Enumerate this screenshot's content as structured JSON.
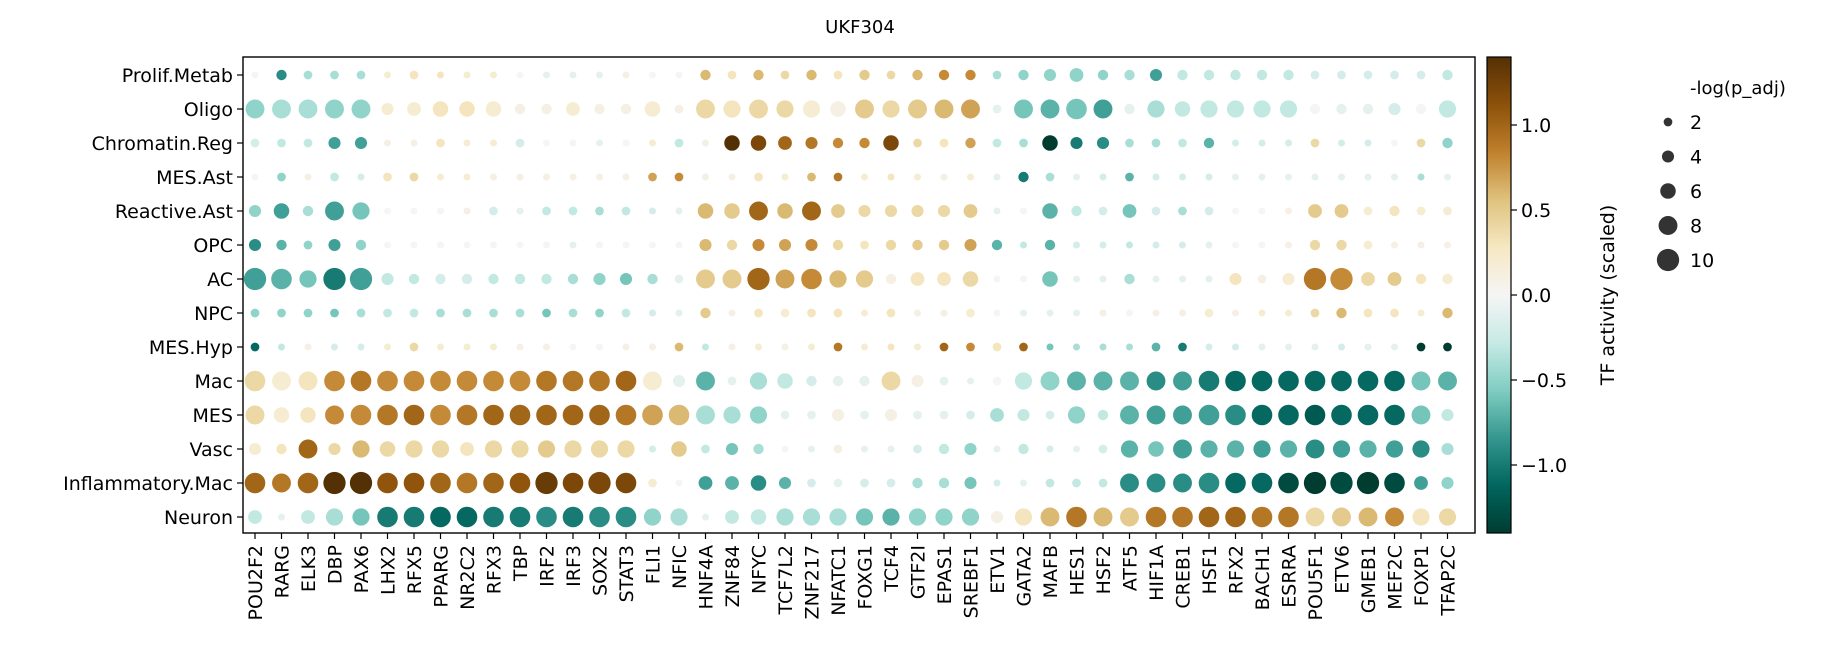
{
  "chart_data": {
    "type": "dotplot",
    "title": "UKF304",
    "rows": [
      "Prolif.Metab",
      "Oligo",
      "Chromatin.Reg",
      "MES.Ast",
      "Reactive.Ast",
      "OPC",
      "AC",
      "NPC",
      "MES.Hyp",
      "Mac",
      "MES",
      "Vasc",
      "Inflammatory.Mac",
      "Neuron"
    ],
    "columns": [
      "POU2F2",
      "RARG",
      "ELK3",
      "DBP",
      "PAX6",
      "LHX2",
      "RFX5",
      "PPARG",
      "NR2C2",
      "RFX3",
      "TBP",
      "IRF2",
      "IRF3",
      "SOX2",
      "STAT3",
      "FLI1",
      "NFIC",
      "HNF4A",
      "ZNF84",
      "NFYC",
      "TCF7L2",
      "ZNF217",
      "NFATC1",
      "FOXG1",
      "TCF4",
      "GTF2I",
      "EPAS1",
      "SREBF1",
      "ETV1",
      "GATA2",
      "MAFB",
      "HES1",
      "HSF2",
      "ATF5",
      "HIF1A",
      "CREB1",
      "HSF1",
      "RFX2",
      "BACH1",
      "ESRRA",
      "POU5F1",
      "ETV6",
      "GMEB1",
      "MEF2C",
      "FOXP1",
      "TFAP2C"
    ],
    "activity": [
      [
        0.0,
        -0.9,
        -0.4,
        -0.4,
        -0.4,
        0.2,
        0.3,
        0.3,
        0.2,
        0.2,
        0.0,
        -0.1,
        -0.1,
        -0.1,
        0.1,
        0.0,
        0.0,
        0.6,
        0.3,
        0.6,
        0.4,
        0.6,
        0.3,
        0.5,
        0.4,
        0.6,
        0.8,
        0.8,
        -0.4,
        -0.5,
        -0.5,
        -0.5,
        -0.5,
        -0.4,
        -0.8,
        -0.3,
        -0.3,
        -0.3,
        -0.3,
        -0.3,
        -0.2,
        -0.2,
        -0.2,
        -0.2,
        -0.2,
        -0.3
      ],
      [
        -0.5,
        -0.4,
        -0.4,
        -0.5,
        -0.5,
        0.2,
        0.2,
        0.3,
        0.3,
        0.2,
        0.1,
        0.1,
        0.2,
        0.1,
        0.1,
        0.2,
        0.1,
        0.4,
        0.3,
        0.4,
        0.4,
        0.2,
        0.1,
        0.5,
        0.4,
        0.5,
        0.6,
        0.7,
        -0.1,
        -0.6,
        -0.7,
        -0.6,
        -0.8,
        -0.1,
        -0.4,
        -0.3,
        -0.3,
        -0.3,
        -0.3,
        -0.3,
        0.0,
        -0.1,
        -0.1,
        -0.2,
        0.0,
        -0.3
      ],
      [
        -0.2,
        -0.3,
        -0.3,
        -0.8,
        -0.8,
        0.1,
        0.1,
        0.3,
        0.2,
        0.2,
        -0.2,
        0.0,
        0.0,
        -0.1,
        0.0,
        0.2,
        -0.3,
        0.1,
        1.4,
        1.2,
        1.0,
        0.9,
        0.8,
        0.8,
        1.2,
        0.4,
        0.3,
        0.7,
        -0.3,
        -0.4,
        -1.4,
        -1.0,
        -0.9,
        -0.4,
        -0.4,
        -0.3,
        -0.7,
        -0.2,
        -0.2,
        -0.2,
        0.4,
        -0.2,
        -0.2,
        0.0,
        0.4,
        -0.5
      ],
      [
        0.0,
        -0.5,
        0.1,
        -0.3,
        -0.2,
        0.3,
        0.4,
        0.2,
        0.2,
        0.1,
        0.1,
        0.1,
        0.1,
        0.1,
        0.1,
        0.7,
        0.8,
        0.1,
        0.1,
        0.3,
        0.2,
        0.6,
        0.9,
        0.2,
        0.3,
        0.2,
        0.1,
        0.2,
        -0.1,
        -1.0,
        -0.4,
        -0.1,
        -0.2,
        -0.7,
        -0.2,
        -0.2,
        -0.2,
        -0.1,
        -0.1,
        -0.1,
        -0.1,
        -0.1,
        -0.1,
        -0.1,
        -0.4,
        -0.1
      ],
      [
        -0.5,
        -0.8,
        -0.4,
        -0.8,
        -0.6,
        0.0,
        0.0,
        0.0,
        0.1,
        -0.2,
        -0.1,
        -0.3,
        -0.3,
        -0.4,
        -0.3,
        -0.2,
        -0.1,
        0.6,
        0.5,
        1.0,
        0.6,
        1.0,
        0.5,
        0.4,
        0.4,
        0.4,
        0.4,
        0.5,
        -0.1,
        0.0,
        -0.7,
        -0.3,
        -0.2,
        -0.6,
        -0.2,
        -0.4,
        -0.2,
        0.0,
        0.0,
        0.1,
        0.5,
        0.5,
        0.2,
        0.3,
        0.2,
        0.2
      ],
      [
        -0.9,
        -0.7,
        -0.5,
        -0.8,
        -0.5,
        0.0,
        0.0,
        0.0,
        0.0,
        0.0,
        0.0,
        0.0,
        -0.1,
        0.0,
        0.0,
        0.0,
        0.0,
        0.6,
        0.4,
        0.8,
        0.7,
        0.8,
        0.4,
        0.3,
        0.4,
        0.5,
        0.5,
        0.7,
        -0.7,
        -0.3,
        -0.7,
        -0.2,
        -0.2,
        -0.3,
        -0.2,
        -0.2,
        -0.1,
        0.0,
        0.0,
        0.1,
        0.4,
        0.4,
        0.2,
        0.1,
        0.1,
        0.1
      ],
      [
        -0.8,
        -0.7,
        -0.6,
        -1.0,
        -0.8,
        -0.3,
        -0.3,
        -0.2,
        -0.2,
        -0.3,
        -0.3,
        -0.3,
        -0.4,
        -0.5,
        -0.6,
        -0.4,
        -0.1,
        0.5,
        0.5,
        1.0,
        0.7,
        0.8,
        0.6,
        0.5,
        0.1,
        0.3,
        0.3,
        0.4,
        0.0,
        0.0,
        -0.6,
        -0.1,
        -0.1,
        -0.4,
        -0.1,
        -0.1,
        -0.1,
        0.3,
        0.1,
        0.2,
        0.9,
        0.8,
        0.4,
        0.5,
        0.3,
        0.2
      ],
      [
        -0.5,
        -0.5,
        -0.5,
        -0.6,
        -0.4,
        -0.3,
        -0.3,
        -0.4,
        -0.4,
        -0.4,
        -0.4,
        -0.6,
        -0.4,
        -0.5,
        -0.3,
        -0.2,
        -0.1,
        0.5,
        0.1,
        0.3,
        0.2,
        0.3,
        0.3,
        0.2,
        0.3,
        0.1,
        0.1,
        0.2,
        0.0,
        -0.1,
        -0.1,
        -0.1,
        0.1,
        0.0,
        0.1,
        0.1,
        0.2,
        0.1,
        0.2,
        0.2,
        0.4,
        0.6,
        0.3,
        0.3,
        0.2,
        0.6
      ],
      [
        -1.1,
        -0.3,
        0.1,
        -0.2,
        -0.2,
        0.2,
        0.4,
        0.2,
        0.2,
        0.2,
        0.1,
        0.1,
        0.0,
        0.0,
        0.1,
        0.1,
        0.6,
        -0.3,
        0.1,
        0.2,
        0.1,
        0.2,
        0.9,
        0.2,
        0.3,
        0.2,
        1.0,
        0.8,
        0.3,
        1.0,
        -0.6,
        -0.4,
        -0.4,
        -0.4,
        -0.7,
        -1.0,
        -0.2,
        -0.2,
        -0.1,
        -0.1,
        -0.1,
        -0.2,
        -0.1,
        -0.1,
        -1.4,
        -1.4
      ],
      [
        0.4,
        0.2,
        0.3,
        0.8,
        0.9,
        0.8,
        0.8,
        0.8,
        0.8,
        0.8,
        0.8,
        0.9,
        0.9,
        0.9,
        1.0,
        0.2,
        -0.1,
        -0.7,
        -0.1,
        -0.4,
        -0.3,
        -0.2,
        -0.1,
        -0.1,
        0.4,
        0.1,
        -0.1,
        -0.1,
        0.0,
        -0.3,
        -0.5,
        -0.7,
        -0.7,
        -0.7,
        -0.9,
        -0.8,
        -1.0,
        -1.1,
        -1.1,
        -1.1,
        -1.1,
        -1.1,
        -1.1,
        -1.1,
        -0.6,
        -0.7
      ],
      [
        0.4,
        0.2,
        0.3,
        0.8,
        0.8,
        0.9,
        1.0,
        0.8,
        0.9,
        1.0,
        1.0,
        1.0,
        1.0,
        1.0,
        0.9,
        0.7,
        0.6,
        -0.4,
        -0.4,
        -0.5,
        -0.1,
        -0.1,
        0.1,
        -0.1,
        0.1,
        -0.1,
        -0.1,
        -0.2,
        -0.4,
        -0.3,
        -0.2,
        -0.5,
        -0.3,
        -0.7,
        -0.8,
        -0.8,
        -0.8,
        -0.9,
        -1.1,
        -1.1,
        -1.2,
        -1.1,
        -1.1,
        -1.1,
        -0.6,
        -0.3
      ],
      [
        0.2,
        0.3,
        1.0,
        0.4,
        0.6,
        0.4,
        0.4,
        0.4,
        0.3,
        0.4,
        0.4,
        0.5,
        0.4,
        0.4,
        0.4,
        -0.2,
        0.5,
        -0.3,
        -0.6,
        -0.4,
        0.0,
        -0.1,
        0.1,
        -0.1,
        -0.1,
        -0.2,
        -0.3,
        -0.5,
        -0.1,
        -0.3,
        -0.2,
        -0.1,
        -0.2,
        -0.7,
        -0.6,
        -0.8,
        -0.7,
        -0.7,
        -0.8,
        -0.7,
        -0.9,
        -0.8,
        -0.7,
        -0.8,
        -0.9,
        -0.4
      ],
      [
        1.0,
        0.9,
        1.0,
        1.4,
        1.4,
        1.1,
        1.1,
        1.0,
        0.9,
        1.0,
        1.1,
        1.3,
        1.2,
        1.2,
        1.2,
        0.2,
        0.0,
        -0.8,
        -0.7,
        -0.9,
        -0.7,
        -0.2,
        -0.1,
        -0.2,
        -0.2,
        -0.4,
        -0.4,
        -0.6,
        -0.2,
        -0.1,
        -0.3,
        -0.3,
        -0.3,
        -0.9,
        -0.9,
        -0.9,
        -0.9,
        -1.1,
        -1.1,
        -1.3,
        -1.4,
        -1.3,
        -1.4,
        -1.3,
        -0.8,
        -0.5
      ],
      [
        -0.3,
        -0.1,
        -0.3,
        -0.4,
        -0.6,
        -1.0,
        -1.0,
        -1.1,
        -1.1,
        -1.0,
        -1.0,
        -0.9,
        -1.0,
        -0.9,
        -0.9,
        -0.5,
        -0.4,
        -0.1,
        -0.3,
        -0.3,
        -0.4,
        -0.4,
        -0.4,
        -0.6,
        -0.7,
        -0.5,
        -0.5,
        -0.5,
        0.1,
        0.3,
        0.6,
        0.9,
        0.6,
        0.5,
        0.9,
        0.9,
        1.0,
        1.0,
        0.9,
        0.9,
        0.4,
        0.5,
        0.6,
        0.8,
        0.3,
        0.4
      ]
    ],
    "significance": [
      [
        1,
        3,
        2,
        2,
        2,
        1,
        2,
        1,
        1,
        1,
        1,
        1,
        1,
        1,
        1,
        1,
        1,
        3,
        2,
        3,
        2,
        3,
        2,
        3,
        2,
        3,
        3,
        3,
        2,
        3,
        4,
        5,
        3,
        3,
        4,
        3,
        3,
        3,
        3,
        3,
        2,
        2,
        2,
        2,
        2,
        3
      ],
      [
        8,
        8,
        8,
        8,
        8,
        4,
        5,
        6,
        6,
        6,
        3,
        3,
        5,
        3,
        3,
        6,
        2,
        8,
        7,
        8,
        7,
        7,
        6,
        8,
        7,
        8,
        8,
        8,
        2,
        8,
        8,
        9,
        8,
        3,
        7,
        6,
        7,
        7,
        7,
        7,
        3,
        3,
        3,
        4,
        3,
        7
      ],
      [
        2,
        2,
        2,
        4,
        4,
        1,
        1,
        2,
        1,
        1,
        2,
        1,
        1,
        1,
        1,
        1,
        2,
        1,
        6,
        6,
        5,
        4,
        3,
        3,
        6,
        2,
        2,
        3,
        2,
        2,
        6,
        4,
        4,
        2,
        2,
        2,
        3,
        1,
        1,
        1,
        2,
        1,
        1,
        1,
        2,
        3
      ],
      [
        1,
        2,
        1,
        2,
        1,
        2,
        2,
        1,
        1,
        1,
        1,
        1,
        1,
        1,
        1,
        2,
        2,
        1,
        1,
        2,
        1,
        2,
        2,
        1,
        1,
        1,
        1,
        1,
        1,
        3,
        2,
        1,
        1,
        2,
        1,
        1,
        1,
        1,
        1,
        1,
        1,
        1,
        1,
        1,
        1,
        1
      ],
      [
        4,
        6,
        3,
        8,
        7,
        1,
        1,
        1,
        1,
        2,
        1,
        2,
        2,
        2,
        2,
        1,
        1,
        6,
        6,
        8,
        6,
        8,
        5,
        4,
        4,
        4,
        4,
        5,
        1,
        1,
        6,
        3,
        2,
        5,
        2,
        2,
        2,
        1,
        1,
        1,
        5,
        5,
        2,
        3,
        2,
        2
      ],
      [
        4,
        3,
        2,
        4,
        3,
        1,
        1,
        1,
        1,
        1,
        1,
        1,
        1,
        1,
        1,
        1,
        1,
        4,
        3,
        4,
        4,
        4,
        3,
        2,
        3,
        3,
        3,
        4,
        3,
        1,
        3,
        1,
        1,
        1,
        1,
        1,
        1,
        1,
        1,
        1,
        3,
        3,
        2,
        1,
        1,
        1
      ],
      [
        10,
        9,
        7,
        10,
        10,
        4,
        3,
        3,
        3,
        3,
        3,
        3,
        3,
        4,
        4,
        3,
        2,
        8,
        8,
        10,
        8,
        9,
        7,
        7,
        3,
        5,
        5,
        6,
        1,
        1,
        6,
        1,
        1,
        3,
        1,
        1,
        1,
        4,
        2,
        4,
        10,
        10,
        5,
        5,
        3,
        3
      ],
      [
        2,
        2,
        2,
        2,
        2,
        2,
        2,
        2,
        2,
        2,
        2,
        2,
        2,
        2,
        2,
        1,
        1,
        3,
        1,
        2,
        2,
        2,
        2,
        1,
        2,
        1,
        1,
        2,
        1,
        1,
        1,
        1,
        1,
        1,
        1,
        1,
        2,
        1,
        1,
        1,
        2,
        3,
        2,
        2,
        1,
        3
      ],
      [
        2,
        1,
        1,
        1,
        1,
        1,
        2,
        1,
        1,
        1,
        1,
        1,
        1,
        1,
        1,
        1,
        2,
        1,
        1,
        1,
        1,
        1,
        2,
        1,
        1,
        1,
        2,
        2,
        2,
        2,
        1,
        1,
        1,
        1,
        2,
        2,
        1,
        1,
        1,
        1,
        1,
        1,
        1,
        1,
        2,
        2
      ],
      [
        9,
        8,
        8,
        9,
        9,
        9,
        9,
        9,
        9,
        9,
        9,
        9,
        9,
        9,
        9,
        8,
        4,
        8,
        2,
        7,
        6,
        3,
        3,
        3,
        8,
        4,
        2,
        1,
        2,
        7,
        8,
        8,
        8,
        8,
        8,
        8,
        9,
        9,
        9,
        9,
        9,
        9,
        9,
        9,
        8,
        8
      ],
      [
        8,
        6,
        6,
        8,
        9,
        9,
        9,
        9,
        9,
        9,
        9,
        9,
        9,
        9,
        9,
        9,
        9,
        8,
        7,
        7,
        2,
        2,
        4,
        2,
        4,
        2,
        2,
        2,
        5,
        4,
        2,
        7,
        3,
        8,
        8,
        8,
        9,
        9,
        9,
        9,
        9,
        9,
        9,
        9,
        8,
        4
      ],
      [
        4,
        3,
        8,
        4,
        7,
        6,
        7,
        7,
        5,
        7,
        7,
        7,
        7,
        7,
        7,
        1,
        6,
        2,
        4,
        3,
        1,
        1,
        2,
        1,
        1,
        2,
        3,
        4,
        1,
        3,
        1,
        1,
        2,
        7,
        6,
        8,
        7,
        7,
        7,
        7,
        8,
        7,
        7,
        7,
        7,
        4
      ],
      [
        9,
        8,
        9,
        10,
        10,
        9,
        9,
        9,
        9,
        9,
        9,
        10,
        9,
        10,
        9,
        2,
        1,
        5,
        5,
        6,
        4,
        2,
        2,
        2,
        2,
        3,
        3,
        4,
        1,
        1,
        2,
        2,
        2,
        8,
        8,
        8,
        9,
        9,
        9,
        9,
        10,
        10,
        10,
        9,
        5,
        4
      ],
      [
        5,
        1,
        5,
        7,
        7,
        9,
        9,
        9,
        9,
        9,
        9,
        9,
        9,
        9,
        9,
        7,
        7,
        1,
        5,
        6,
        7,
        7,
        7,
        7,
        7,
        7,
        7,
        7,
        4,
        7,
        8,
        9,
        8,
        8,
        9,
        9,
        9,
        9,
        9,
        9,
        8,
        8,
        8,
        8,
        7,
        7
      ]
    ],
    "color_scale": {
      "name": "BrBG",
      "stops": [
        "#003c30",
        "#01665e",
        "#35978f",
        "#80cdc1",
        "#c7eae5",
        "#f5f5f5",
        "#f6e8c3",
        "#dfc27d",
        "#bf812d",
        "#8c510a",
        "#543005"
      ],
      "vmin": -1.4,
      "vmax": 1.4
    },
    "colorbar": {
      "label": "TF activity (scaled)",
      "ticks": [
        1.0,
        0.5,
        0.0,
        -0.5,
        -1.0
      ],
      "tick_labels": [
        "1.0",
        "0.5",
        "0.0",
        "−0.5",
        "−1.0"
      ]
    },
    "size_legend": {
      "title": "-log(p_adj)",
      "values": [
        2,
        4,
        6,
        8,
        10
      ],
      "labels": [
        "2",
        "4",
        "6",
        "8",
        "10"
      ],
      "dot_color": "#333333"
    }
  }
}
